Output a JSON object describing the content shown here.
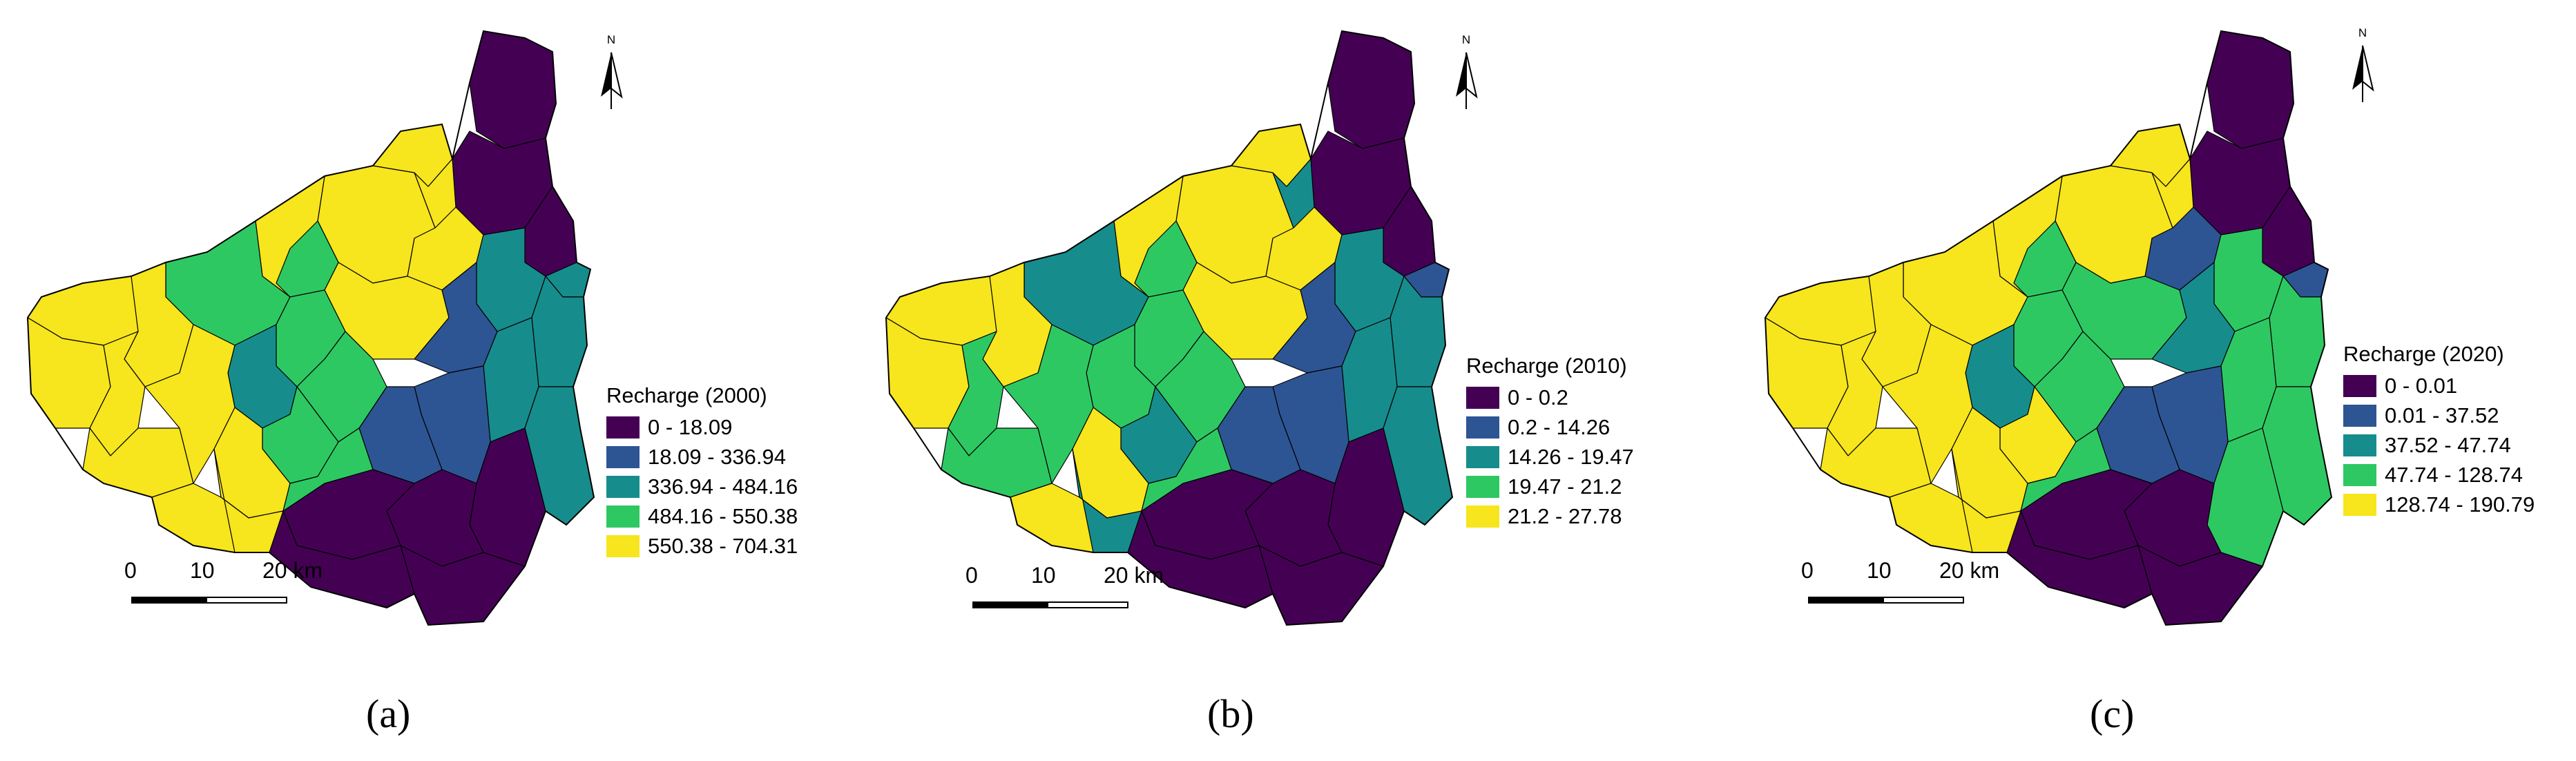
{
  "panels": [
    {
      "caption": "(a)",
      "legend_title": "Recharge (2000)",
      "classes": [
        {
          "label": "0 - 18.09",
          "color": "#440154"
        },
        {
          "label": "18.09 - 336.94",
          "color": "#2d5594"
        },
        {
          "label": "336.94 - 484.16",
          "color": "#168d8c"
        },
        {
          "label": "484.16 - 550.38",
          "color": "#2ec863"
        },
        {
          "label": "550.38 - 704.31",
          "color": "#f7e51d"
        }
      ]
    },
    {
      "caption": "(b)",
      "legend_title": "Recharge (2010)",
      "classes": [
        {
          "label": "0 - 0.2",
          "color": "#440154"
        },
        {
          "label": "0.2 - 14.26",
          "color": "#2d5594"
        },
        {
          "label": "14.26 - 19.47",
          "color": "#168d8c"
        },
        {
          "label": "19.47 - 21.2",
          "color": "#2ec863"
        },
        {
          "label": "21.2 - 27.78",
          "color": "#f7e51d"
        }
      ]
    },
    {
      "caption": "(c)",
      "legend_title": "Recharge (2020)",
      "classes": [
        {
          "label": "0 - 0.01",
          "color": "#440154"
        },
        {
          "label": "0.01 - 37.52",
          "color": "#2d5594"
        },
        {
          "label": "37.52 - 47.74",
          "color": "#168d8c"
        },
        {
          "label": "47.74 - 128.74",
          "color": "#2ec863"
        },
        {
          "label": "128.74 - 190.79",
          "color": "#f7e51d"
        }
      ]
    }
  ],
  "north_label": "N",
  "scale": {
    "labels": [
      "0",
      "10",
      "20 km"
    ]
  }
}
